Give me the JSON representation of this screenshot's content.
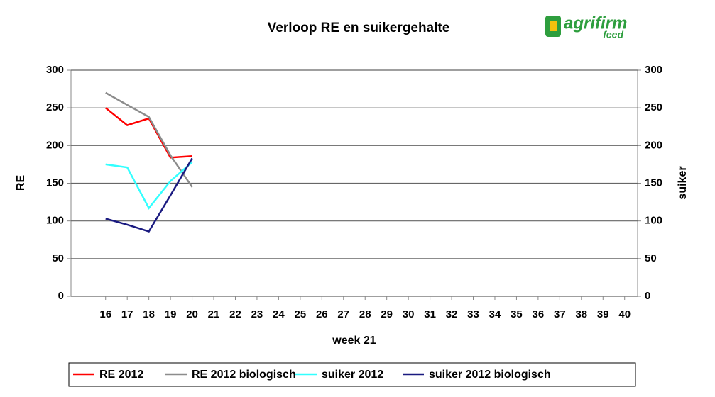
{
  "chart_data": {
    "type": "line",
    "title": "Verloop RE en suikergehalte",
    "logo": {
      "name": "agrifirm",
      "sub": "feed"
    },
    "x": [
      16,
      17,
      18,
      19,
      20
    ],
    "xlabel": "week 21",
    "ylabel": "RE",
    "y2label": "suiker",
    "xlim": [
      14.4,
      40.6
    ],
    "xticks": [
      16,
      17,
      18,
      19,
      20,
      21,
      22,
      23,
      24,
      25,
      26,
      27,
      28,
      29,
      30,
      31,
      32,
      33,
      34,
      35,
      36,
      37,
      38,
      39,
      40
    ],
    "ylim": [
      0,
      300
    ],
    "yticks": [
      0,
      50,
      100,
      150,
      200,
      250,
      300
    ],
    "y2lim": [
      0,
      300
    ],
    "y2ticks": [
      0,
      50,
      100,
      150,
      200,
      250,
      300
    ],
    "grid": true,
    "legend": "bottom",
    "series": [
      {
        "name": "RE 2012",
        "color": "#ff0000",
        "values": [
          250,
          227,
          236,
          184,
          186
        ]
      },
      {
        "name": "RE 2012 biologisch",
        "color": "#8c8c8c",
        "values": [
          270,
          254,
          238,
          187,
          145
        ]
      },
      {
        "name": "suiker 2012",
        "color": "#33ffff",
        "values": [
          175,
          171,
          117,
          153,
          178
        ],
        "axis": "y2"
      },
      {
        "name": "suiker 2012 biologisch",
        "color": "#1a1a80",
        "values": [
          103,
          95,
          86,
          134,
          183
        ],
        "axis": "y2"
      }
    ]
  }
}
